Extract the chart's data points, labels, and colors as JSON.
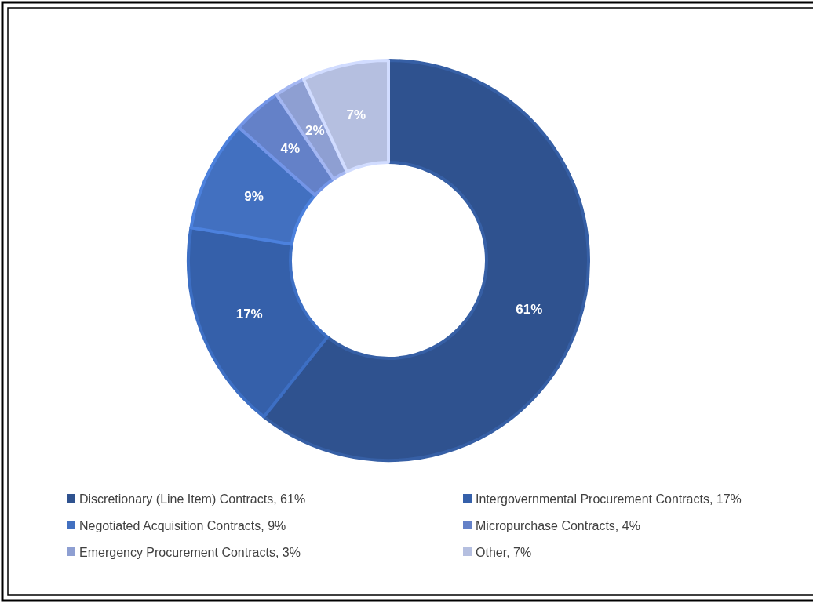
{
  "chart_data": {
    "type": "donut",
    "categories": [
      "Discretionary (Line Item) Contracts, 61%",
      "Intergovernmental Procurement Contracts, 17%",
      "Negotiated Acquisition Contracts, 9%",
      "Micropurchase Contracts, 4%",
      "Emergency Procurement Contracts, 3%",
      "Other, 7%"
    ],
    "values": [
      61,
      17,
      9,
      4,
      2.5,
      7
    ],
    "value_labels": [
      "61%",
      "17%",
      "9%",
      "4%",
      "2%",
      "7%"
    ],
    "colors": [
      "#2f528f",
      "#3560aa",
      "#4270c0",
      "#6481c8",
      "#8e9fd2",
      "#b5bfe0"
    ],
    "legend": "bottom"
  }
}
